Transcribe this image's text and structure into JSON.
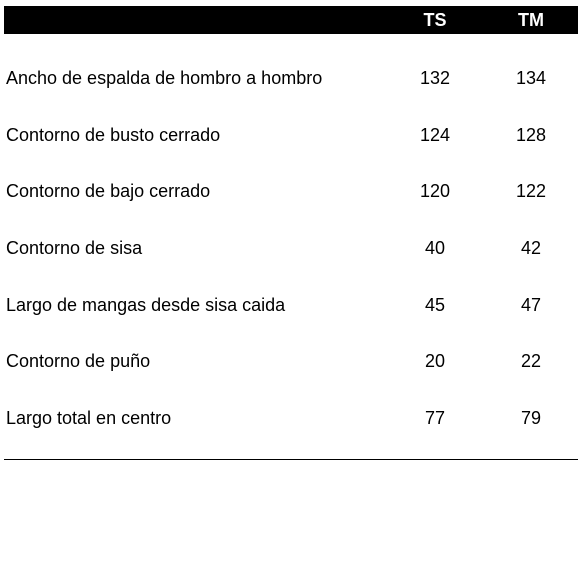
{
  "header": {
    "col_ts": "TS",
    "col_tm": "TM"
  },
  "rows": [
    {
      "label": "Ancho de espalda de hombro a hombro",
      "ts": "132",
      "tm": "134"
    },
    {
      "label": "Contorno de busto cerrado",
      "ts": "124",
      "tm": "128"
    },
    {
      "label": "Contorno de bajo cerrado",
      "ts": "120",
      "tm": "122"
    },
    {
      "label": "Contorno de sisa",
      "ts": "40",
      "tm": "42"
    },
    {
      "label": "Largo de mangas desde sisa caida",
      "ts": "45",
      "tm": "47"
    },
    {
      "label": "Contorno de puño",
      "ts": "20",
      "tm": "22"
    },
    {
      "label": "Largo total en centro",
      "ts": "77",
      "tm": "79"
    }
  ],
  "colors": {
    "header_background": "#000000",
    "header_text": "#ffffff",
    "body_text": "#000000"
  }
}
